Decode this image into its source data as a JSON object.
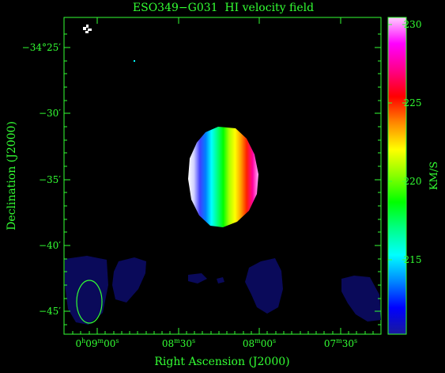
{
  "title": "ESO349−G031  HI velocity field",
  "x_axis": {
    "label": "Right Ascension (J2000)",
    "ticks": [
      {
        "h": "0",
        "hs": "h",
        "m": "09",
        "ms": "m",
        "s": "00",
        "ss": "s"
      },
      {
        "h": "",
        "hs": "",
        "m": "08",
        "ms": "m",
        "s": "30",
        "ss": "s"
      },
      {
        "h": "",
        "hs": "",
        "m": "08",
        "ms": "m",
        "s": "00",
        "ss": "s"
      },
      {
        "h": "",
        "hs": "",
        "m": "07",
        "ms": "m",
        "s": "30",
        "ss": "s"
      }
    ]
  },
  "y_axis": {
    "label": "Declination (J2000)",
    "ticks": [
      "−34°25′",
      "−30′",
      "−35′",
      "−40′",
      "−45′"
    ]
  },
  "colorbar": {
    "unit": "KM/S",
    "ticks": [
      "230",
      "225",
      "220",
      "215"
    ],
    "colors": [
      "#1a1a9a",
      "#0000ff",
      "#0088ff",
      "#00ffff",
      "#00ff88",
      "#00ff00",
      "#88ff00",
      "#ffff00",
      "#ff8800",
      "#ff0000",
      "#ff0088",
      "#ff00ff",
      "#ffccff"
    ]
  },
  "beam": {
    "shape": "ellipse",
    "color": "#33ff33"
  },
  "galaxy_colors": [
    "#ffffff",
    "#d0d0ff",
    "#4040ff",
    "#0080ff",
    "#00ffff",
    "#00ff80",
    "#00ff00",
    "#aaff00",
    "#ffff00",
    "#ffa000",
    "#ff2000",
    "#ff00a0",
    "#ffb0ff"
  ],
  "noise_color": "#0a0a5a"
}
